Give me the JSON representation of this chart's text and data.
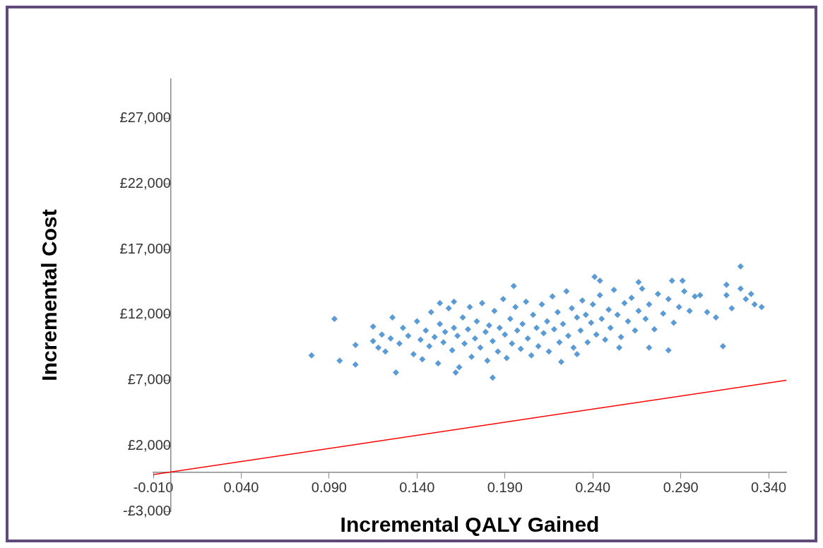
{
  "chart_data": {
    "type": "scatter",
    "xlabel": "Incremental QALY Gained",
    "ylabel": "Incremental Cost",
    "xlim": [
      -0.01,
      0.35
    ],
    "ylim": [
      -3000,
      30000
    ],
    "xticks": [
      {
        "value": -0.01,
        "label": "-0.010"
      },
      {
        "value": 0.04,
        "label": "0.040"
      },
      {
        "value": 0.09,
        "label": "0.090"
      },
      {
        "value": 0.14,
        "label": "0.140"
      },
      {
        "value": 0.19,
        "label": "0.190"
      },
      {
        "value": 0.24,
        "label": "0.240"
      },
      {
        "value": 0.29,
        "label": "0.290"
      },
      {
        "value": 0.34,
        "label": "0.340"
      }
    ],
    "yticks": [
      {
        "value": -3000,
        "label": "-£3,000"
      },
      {
        "value": 2000,
        "label": "£2,000"
      },
      {
        "value": 7000,
        "label": "£7,000"
      },
      {
        "value": 12000,
        "label": "£12,000"
      },
      {
        "value": 17000,
        "label": "£17,000"
      },
      {
        "value": 22000,
        "label": "£22,000"
      },
      {
        "value": 27000,
        "label": "£27,000"
      }
    ],
    "grid": false,
    "legend": false,
    "series": [
      {
        "type": "scatter",
        "color": "#5b9bd5",
        "marker": "diamond",
        "x": [
          0.08,
          0.093,
          0.096,
          0.105,
          0.105,
          0.128,
          0.126,
          0.115,
          0.195,
          0.183,
          0.162,
          0.153,
          0.161,
          0.324,
          0.241,
          0.244,
          0.285,
          0.291,
          0.316,
          0.316,
          0.324,
          0.33,
          0.327,
          0.332,
          0.336,
          0.319,
          0.314,
          0.305,
          0.31,
          0.301,
          0.272,
          0.283,
          0.222,
          0.231,
          0.255,
          0.266,
          0.115,
          0.118,
          0.12,
          0.122,
          0.125,
          0.13,
          0.132,
          0.135,
          0.138,
          0.14,
          0.142,
          0.143,
          0.145,
          0.147,
          0.148,
          0.15,
          0.152,
          0.153,
          0.155,
          0.156,
          0.158,
          0.16,
          0.161,
          0.163,
          0.164,
          0.166,
          0.167,
          0.169,
          0.17,
          0.171,
          0.173,
          0.174,
          0.176,
          0.177,
          0.179,
          0.18,
          0.181,
          0.183,
          0.184,
          0.186,
          0.187,
          0.189,
          0.19,
          0.191,
          0.193,
          0.194,
          0.196,
          0.197,
          0.199,
          0.2,
          0.202,
          0.203,
          0.205,
          0.206,
          0.208,
          0.209,
          0.211,
          0.212,
          0.214,
          0.215,
          0.217,
          0.218,
          0.22,
          0.221,
          0.223,
          0.225,
          0.226,
          0.228,
          0.229,
          0.231,
          0.233,
          0.234,
          0.236,
          0.237,
          0.239,
          0.24,
          0.242,
          0.244,
          0.245,
          0.247,
          0.249,
          0.25,
          0.252,
          0.254,
          0.256,
          0.258,
          0.26,
          0.262,
          0.264,
          0.266,
          0.268,
          0.27,
          0.272,
          0.275,
          0.277,
          0.28,
          0.283,
          0.286,
          0.289,
          0.292,
          0.295,
          0.298
        ],
        "values": [
          8900,
          11700,
          8500,
          8200,
          9700,
          7600,
          11800,
          11100,
          14200,
          7200,
          7600,
          12900,
          13000,
          15700,
          14900,
          14600,
          14600,
          14600,
          14300,
          13500,
          14000,
          13600,
          13200,
          12800,
          12600,
          12500,
          9600,
          12200,
          11800,
          13500,
          9500,
          9300,
          8400,
          9000,
          9500,
          14500,
          10000,
          9500,
          10500,
          9200,
          10200,
          9800,
          11000,
          10400,
          9000,
          11500,
          10100,
          8600,
          10800,
          9600,
          12200,
          10300,
          8300,
          11300,
          9900,
          10700,
          12500,
          9300,
          11000,
          10400,
          8000,
          11800,
          9800,
          10900,
          12600,
          8800,
          10200,
          11500,
          9500,
          12900,
          10700,
          8500,
          11200,
          10000,
          12300,
          9200,
          11000,
          13200,
          10500,
          8700,
          11700,
          9800,
          12600,
          10800,
          9400,
          11300,
          13000,
          10200,
          8900,
          12000,
          11000,
          9600,
          12800,
          10600,
          11500,
          9200,
          13400,
          10900,
          12200,
          9900,
          11300,
          13800,
          10400,
          12500,
          9500,
          11800,
          10800,
          13100,
          12000,
          9900,
          11400,
          12800,
          10500,
          13500,
          11700,
          10100,
          12400,
          11000,
          13900,
          12000,
          10300,
          12900,
          11500,
          13300,
          10800,
          12300,
          14000,
          11700,
          12800,
          10900,
          13600,
          12100,
          13200,
          11400,
          12600,
          13800,
          12300,
          13400
        ]
      },
      {
        "type": "line",
        "color": "#ff0000",
        "marker": "none",
        "line_style": "solid",
        "x": [
          -0.01,
          0.35
        ],
        "values": [
          -200,
          7000
        ]
      }
    ]
  }
}
